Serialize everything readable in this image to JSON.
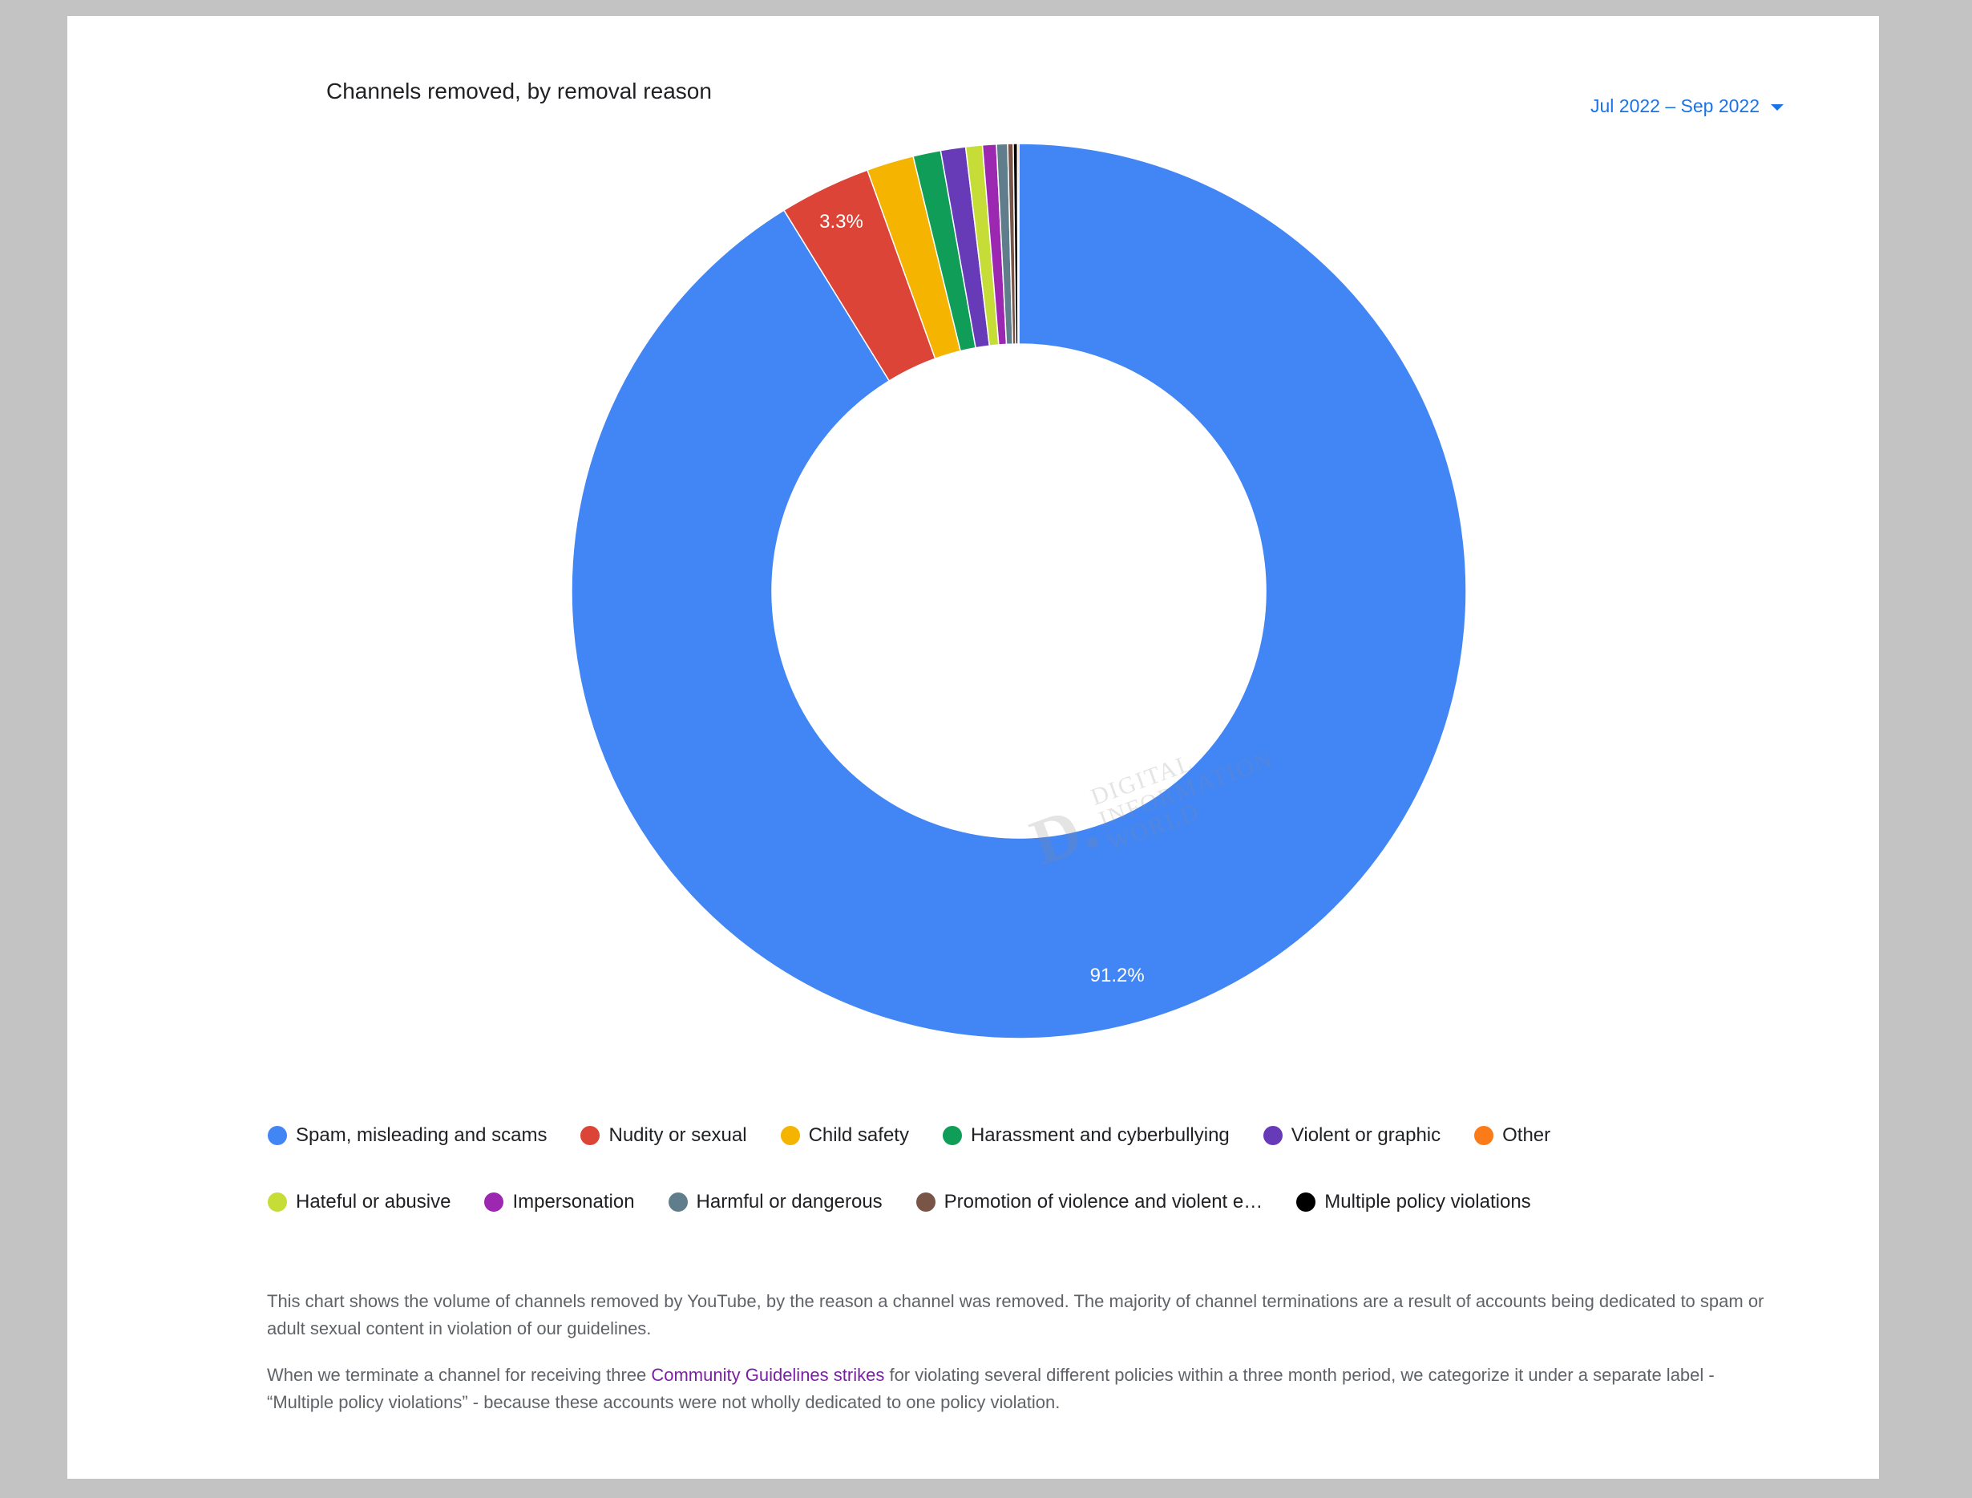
{
  "title": "Channels removed, by removal reason",
  "date_range": {
    "label": "Jul 2022 – Sep 2022"
  },
  "chart_data": {
    "type": "pie",
    "title": "Channels removed, by removal reason",
    "donut": true,
    "legend_placement": "bottom",
    "slices": [
      {
        "name": "Spam, misleading and scams",
        "value": 91.2,
        "color": "#4285f4",
        "label": "91.2%"
      },
      {
        "name": "Nudity or sexual",
        "value": 3.3,
        "color": "#db4437",
        "label": "3.3%"
      },
      {
        "name": "Child safety",
        "value": 1.7,
        "color": "#f4b400",
        "label": ""
      },
      {
        "name": "Harassment and cyberbullying",
        "value": 1.0,
        "color": "#0f9d58",
        "label": ""
      },
      {
        "name": "Violent or graphic",
        "value": 0.9,
        "color": "#673ab7",
        "label": ""
      },
      {
        "name": "Hateful or abusive",
        "value": 0.6,
        "color": "#c6dd37",
        "label": ""
      },
      {
        "name": "Impersonation",
        "value": 0.5,
        "color": "#9c27b0",
        "label": ""
      },
      {
        "name": "Harmful or dangerous",
        "value": 0.4,
        "color": "#607d8b",
        "label": ""
      },
      {
        "name": "Promotion of violence and violent extremism",
        "value": 0.2,
        "color": "#795548",
        "label": ""
      },
      {
        "name": "Multiple policy violations",
        "value": 0.15,
        "color": "#000000",
        "label": ""
      },
      {
        "name": "Other",
        "value": 0.05,
        "color": "#fa7b17",
        "label": ""
      }
    ]
  },
  "legend": {
    "row1": [
      {
        "label": "Spam, misleading and scams",
        "color": "#4285f4"
      },
      {
        "label": "Nudity or sexual",
        "color": "#db4437"
      },
      {
        "label": "Child safety",
        "color": "#f4b400"
      },
      {
        "label": "Harassment and cyberbullying",
        "color": "#0f9d58"
      },
      {
        "label": "Violent or graphic",
        "color": "#673ab7"
      },
      {
        "label": "Other",
        "color": "#fa7b17"
      }
    ],
    "row2": [
      {
        "label": "Hateful or abusive",
        "color": "#c6dd37"
      },
      {
        "label": "Impersonation",
        "color": "#9c27b0"
      },
      {
        "label": "Harmful or dangerous",
        "color": "#607d8b"
      },
      {
        "label": "Promotion of violence and violent e…",
        "color": "#795548"
      },
      {
        "label": "Multiple policy violations",
        "color": "#000000"
      }
    ]
  },
  "description": {
    "p1": "This chart shows the volume of channels removed by YouTube, by the reason a channel was removed. The majority of channel terminations are a result of accounts being dedicated to spam or adult sexual content in violation of our guidelines.",
    "p2_before": "When we terminate a channel for receiving three ",
    "p2_link": "Community Guidelines strikes",
    "p2_after": " for violating several different policies within a three month period, we categorize it under a separate label - “Multiple policy violations” - because these accounts were not wholly dedicated to one policy violation."
  },
  "watermark": {
    "letter": "D.",
    "line1": "DIGITAL",
    "line2": "INFORMATION",
    "line3": "WORLD"
  }
}
